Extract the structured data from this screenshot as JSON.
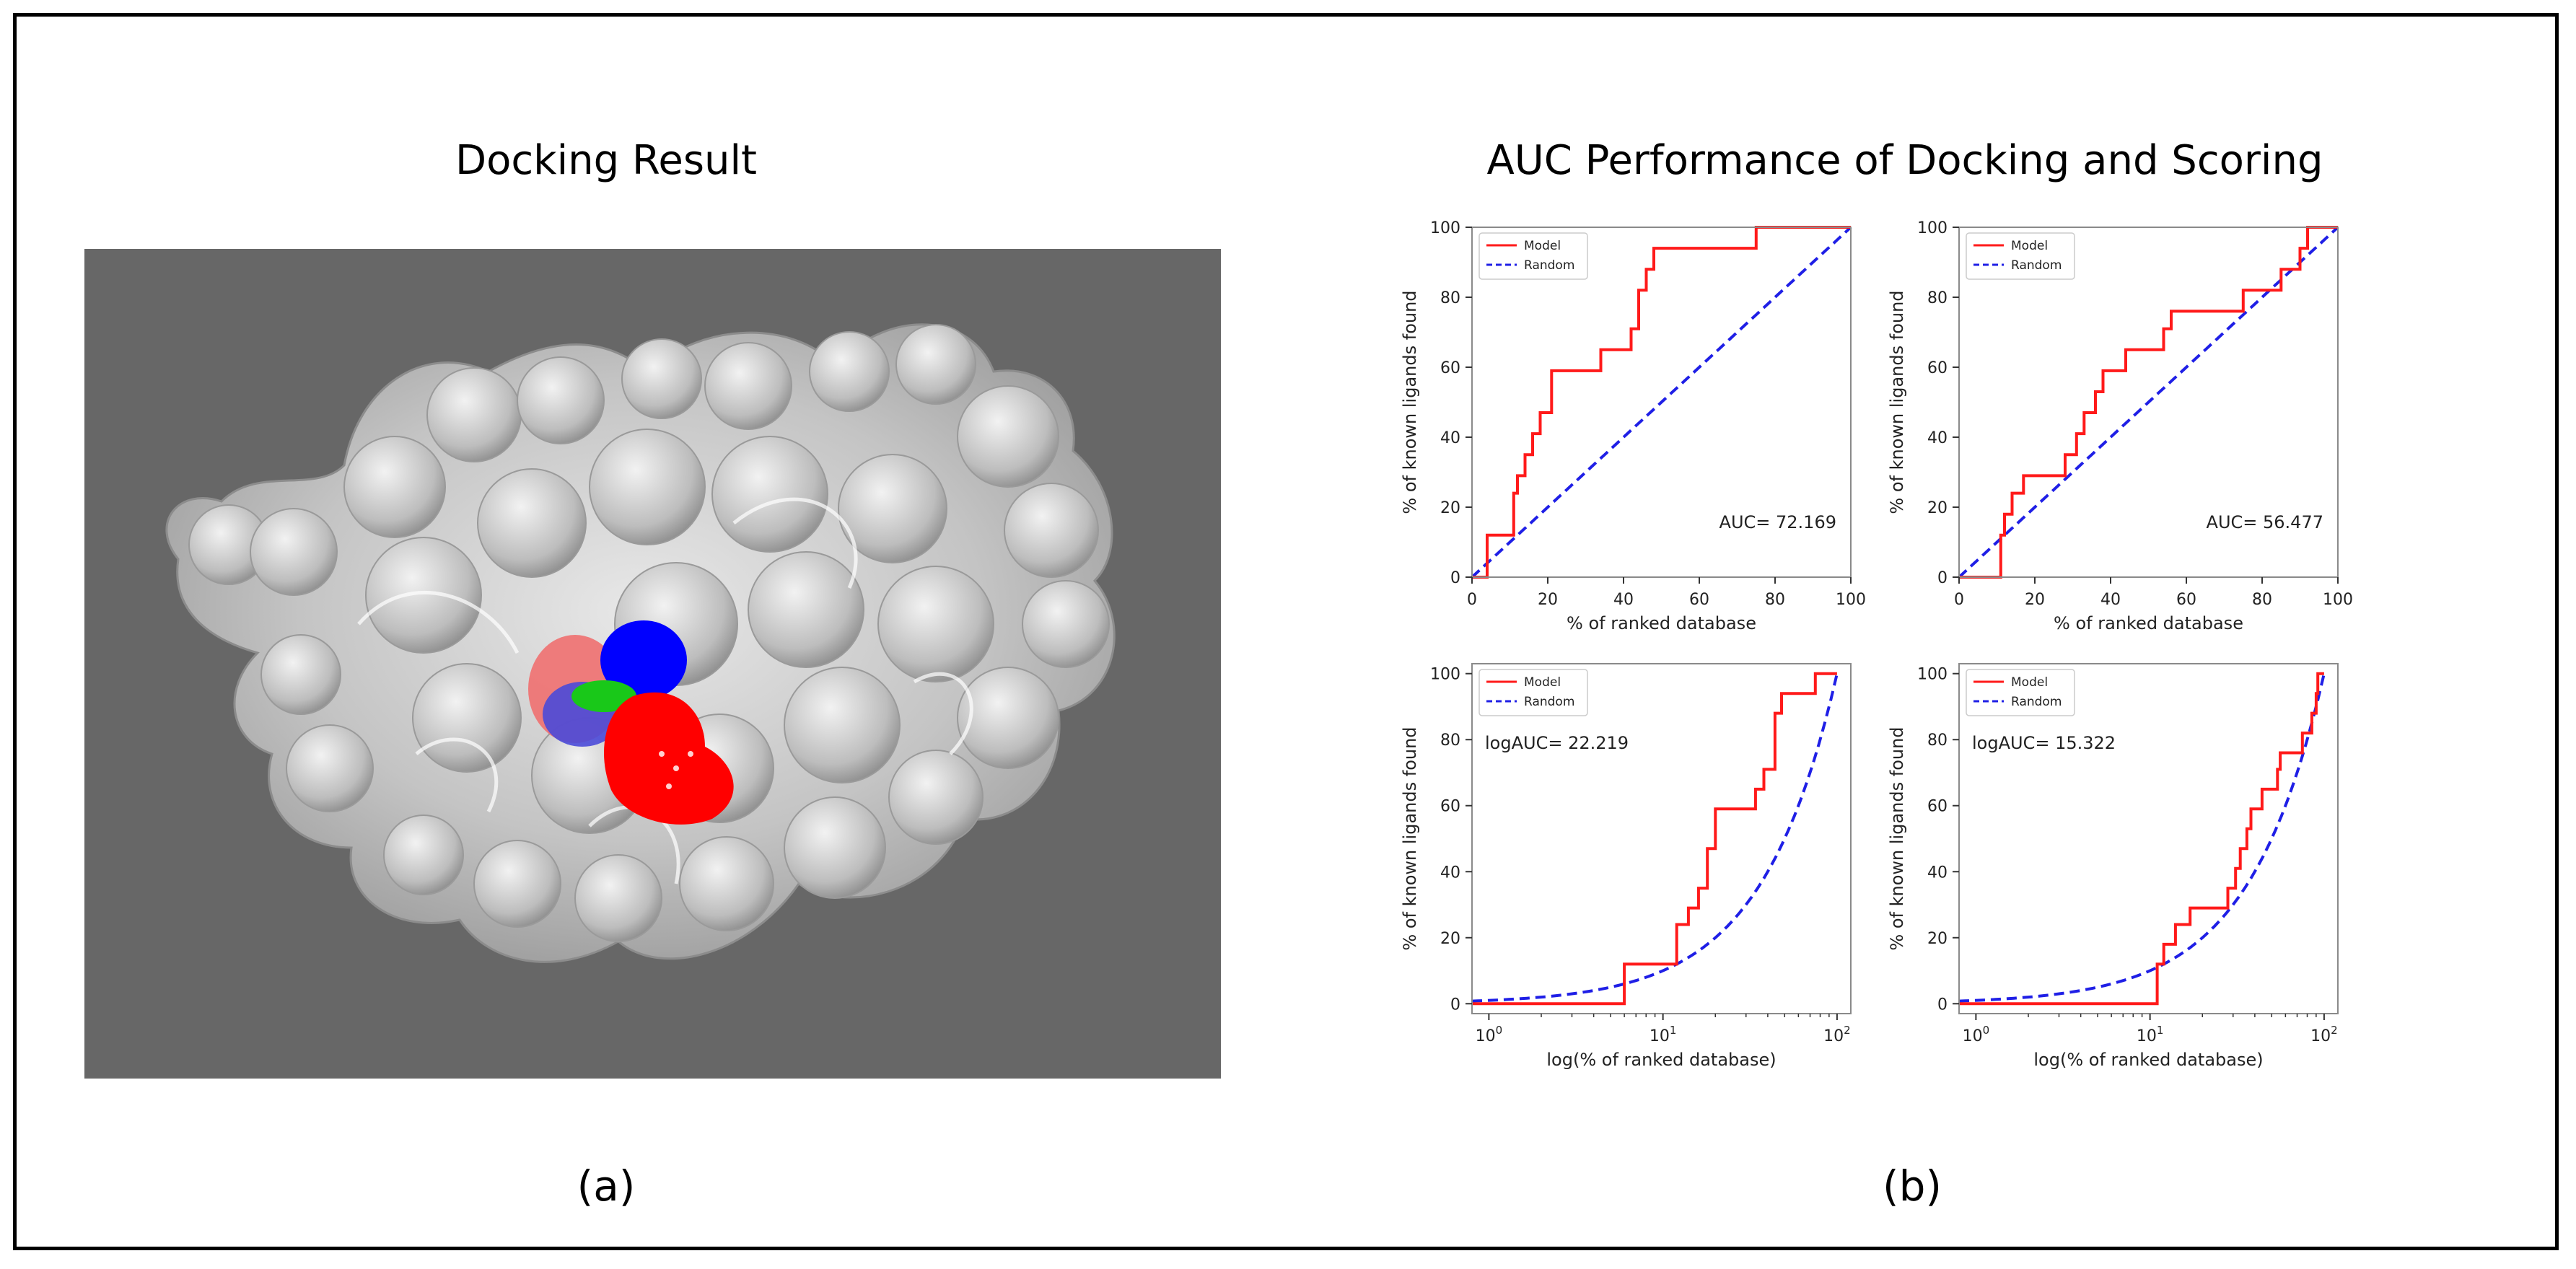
{
  "panel_a": {
    "title": "Docking Result",
    "caption": "(a)",
    "image_label": "protein surface with docked ligand"
  },
  "panel_b": {
    "title": "AUC Performance of Docking and Scoring",
    "caption": "(b)"
  },
  "colors": {
    "model": "#ff1a1a",
    "random": "#1f1fe6",
    "background": "#676767",
    "surface": "#c8c8c8",
    "ligand_red": "#ff0000",
    "ligand_blue": "#0000ff",
    "ligand_green": "#19c819"
  },
  "chart_data": [
    {
      "type": "line",
      "xscale": "linear",
      "xlabel": "% of ranked database",
      "ylabel": "% of known ligands found",
      "xlim": [
        0,
        100
      ],
      "ylim": [
        0,
        100
      ],
      "xticks": [
        0,
        20,
        40,
        60,
        80,
        100
      ],
      "yticks": [
        0,
        20,
        40,
        60,
        80,
        100
      ],
      "legend": [
        "Model",
        "Random"
      ],
      "legend_position": "top-left",
      "annotation": "AUC= 72.169",
      "series": [
        {
          "name": "Model",
          "style": "step",
          "x": [
            0,
            4,
            4,
            8,
            8,
            11,
            11,
            12,
            12,
            14,
            14,
            16,
            16,
            18,
            18,
            21,
            21,
            34,
            34,
            39,
            39,
            42,
            42,
            44,
            44,
            46,
            46,
            48,
            48,
            75,
            75,
            100
          ],
          "y": [
            0,
            0,
            12,
            12,
            12,
            12,
            24,
            24,
            29,
            29,
            35,
            35,
            41,
            41,
            47,
            47,
            59,
            59,
            65,
            65,
            65,
            65,
            71,
            71,
            82,
            82,
            88,
            88,
            94,
            94,
            100,
            100
          ]
        },
        {
          "name": "Random",
          "style": "dashed",
          "x": [
            0,
            100
          ],
          "y": [
            0,
            100
          ]
        }
      ]
    },
    {
      "type": "line",
      "xscale": "linear",
      "xlabel": "% of ranked database",
      "ylabel": "% of known ligands found",
      "xlim": [
        0,
        100
      ],
      "ylim": [
        0,
        100
      ],
      "xticks": [
        0,
        20,
        40,
        60,
        80,
        100
      ],
      "yticks": [
        0,
        20,
        40,
        60,
        80,
        100
      ],
      "legend": [
        "Model",
        "Random"
      ],
      "legend_position": "top-left",
      "annotation": "AUC= 56.477",
      "series": [
        {
          "name": "Model",
          "style": "step",
          "x": [
            0,
            11,
            11,
            12,
            12,
            14,
            14,
            17,
            17,
            28,
            28,
            31,
            31,
            33,
            33,
            36,
            36,
            38,
            38,
            44,
            44,
            48,
            48,
            54,
            54,
            56,
            56,
            75,
            75,
            79,
            79,
            85,
            85,
            90,
            90,
            92,
            92,
            100
          ],
          "y": [
            0,
            0,
            12,
            12,
            18,
            18,
            24,
            24,
            29,
            29,
            35,
            35,
            41,
            41,
            47,
            47,
            53,
            53,
            59,
            59,
            65,
            65,
            65,
            65,
            71,
            71,
            76,
            76,
            82,
            82,
            82,
            82,
            88,
            88,
            94,
            94,
            100,
            100
          ]
        },
        {
          "name": "Random",
          "style": "dashed",
          "x": [
            0,
            100
          ],
          "y": [
            0,
            100
          ]
        }
      ]
    },
    {
      "type": "line",
      "xscale": "log",
      "xlabel": "log(% of ranked database)",
      "ylabel": "% of known ligands found",
      "xlim": [
        0.8,
        120
      ],
      "ylim": [
        -3,
        103
      ],
      "xticks": [
        1,
        10,
        100
      ],
      "xtick_labels": [
        "10",
        "10",
        "10"
      ],
      "xtick_exponents": [
        "0",
        "1",
        "2"
      ],
      "yticks": [
        0,
        20,
        40,
        60,
        80,
        100
      ],
      "legend": [
        "Model",
        "Random"
      ],
      "legend_position": "top-left",
      "annotation": "logAUC= 22.219",
      "series": [
        {
          "name": "Model",
          "style": "step",
          "x": [
            0.8,
            6,
            6,
            12,
            12,
            14,
            14,
            16,
            16,
            18,
            18,
            20,
            20,
            34,
            34,
            38,
            38,
            44,
            44,
            48,
            48,
            75,
            75,
            100
          ],
          "y": [
            0,
            0,
            12,
            12,
            24,
            24,
            29,
            29,
            35,
            35,
            47,
            47,
            59,
            59,
            65,
            65,
            71,
            71,
            88,
            88,
            94,
            94,
            100,
            100
          ]
        },
        {
          "name": "Random",
          "style": "dashed",
          "x": [
            0.8,
            100
          ],
          "y": [
            0.8,
            100
          ]
        }
      ]
    },
    {
      "type": "line",
      "xscale": "log",
      "xlabel": "log(% of ranked database)",
      "ylabel": "% of known ligands found",
      "xlim": [
        0.8,
        120
      ],
      "ylim": [
        -3,
        103
      ],
      "xticks": [
        1,
        10,
        100
      ],
      "xtick_labels": [
        "10",
        "10",
        "10"
      ],
      "xtick_exponents": [
        "0",
        "1",
        "2"
      ],
      "yticks": [
        0,
        20,
        40,
        60,
        80,
        100
      ],
      "legend": [
        "Model",
        "Random"
      ],
      "legend_position": "top-left",
      "annotation": "logAUC= 15.322",
      "series": [
        {
          "name": "Model",
          "style": "step",
          "x": [
            0.8,
            11,
            11,
            12,
            12,
            14,
            14,
            17,
            17,
            28,
            28,
            31,
            31,
            33,
            33,
            36,
            36,
            38,
            38,
            44,
            44,
            48,
            48,
            54,
            54,
            56,
            56,
            75,
            75,
            79,
            79,
            85,
            85,
            90,
            90,
            92,
            92,
            100
          ],
          "y": [
            0,
            0,
            12,
            12,
            18,
            18,
            24,
            24,
            29,
            29,
            35,
            35,
            41,
            41,
            47,
            47,
            53,
            53,
            59,
            59,
            65,
            65,
            65,
            65,
            71,
            71,
            76,
            76,
            82,
            82,
            82,
            82,
            88,
            88,
            94,
            94,
            100,
            100
          ]
        },
        {
          "name": "Random",
          "style": "dashed",
          "x": [
            0.8,
            100
          ],
          "y": [
            0.8,
            100
          ]
        }
      ]
    }
  ]
}
